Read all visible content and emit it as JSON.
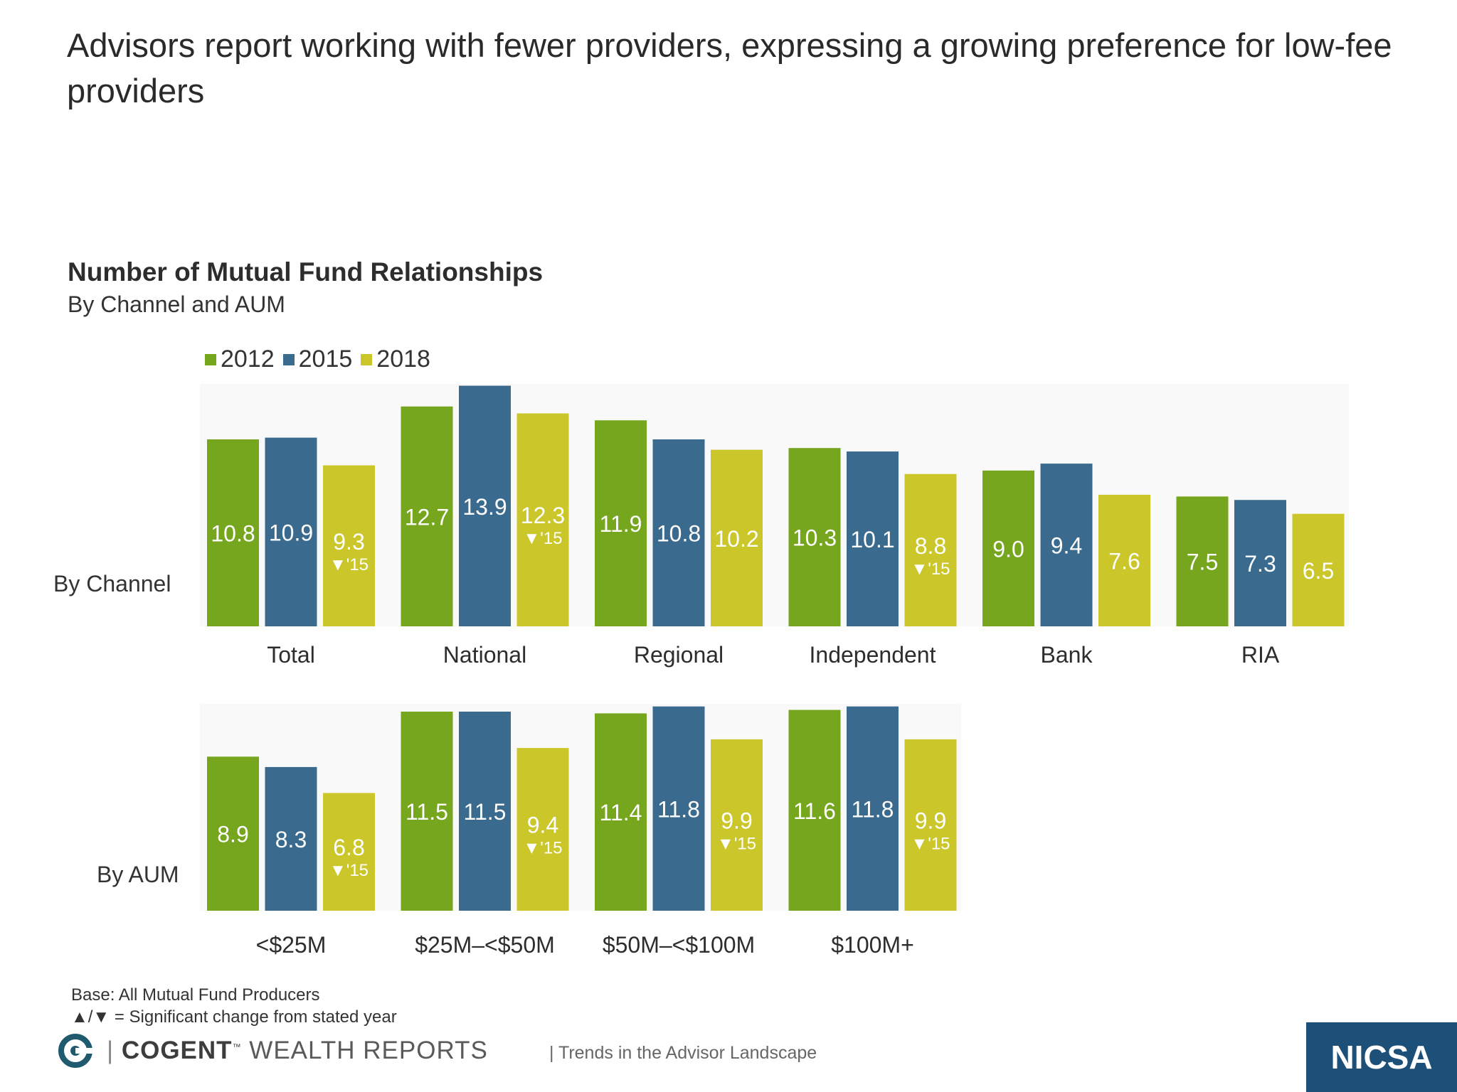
{
  "headline": "Advisors report working with fewer providers, expressing a growing preference for low-fee providers",
  "chart_data": {
    "type": "bar",
    "title": "Number of Mutual Fund Relationships",
    "subtitle": "By Channel and AUM",
    "legend": [
      "2012",
      "2015",
      "2018"
    ],
    "colors": {
      "2012": "#76a51e",
      "2015": "#3a6b8e",
      "2018": "#cbc62a"
    },
    "panels": [
      {
        "label": "By Channel",
        "categories": [
          "Total",
          "National",
          "Regional",
          "Independent",
          "Bank",
          "RIA"
        ],
        "series": [
          {
            "name": "2012",
            "values": [
              10.8,
              12.7,
              11.9,
              10.3,
              9.0,
              7.5
            ]
          },
          {
            "name": "2015",
            "values": [
              10.9,
              13.9,
              10.8,
              10.1,
              9.4,
              7.3
            ]
          },
          {
            "name": "2018",
            "values": [
              9.3,
              12.3,
              10.2,
              8.8,
              7.6,
              6.5
            ]
          }
        ],
        "labels": [
          [
            "10.8",
            "12.7",
            "11.9",
            "10.3",
            "9.0",
            "7.5"
          ],
          [
            "10.9",
            "13.9",
            "10.8",
            "10.1",
            "9.4",
            "7.3"
          ],
          [
            "9.3",
            "12.3",
            "10.2",
            "8.8",
            "7.6",
            "6.5"
          ]
        ],
        "sig_marks": [
          [
            "",
            "",
            "",
            "",
            "",
            ""
          ],
          [
            "",
            "",
            "",
            "",
            "",
            ""
          ],
          [
            "▼'15",
            "▼'15",
            "",
            "▼'15",
            "",
            ""
          ]
        ]
      },
      {
        "label": "By AUM",
        "categories": [
          "<$25M",
          "$25M–<$50M",
          "$50M–<$100M",
          "$100M+"
        ],
        "series": [
          {
            "name": "2012",
            "values": [
              8.9,
              11.5,
              11.4,
              11.6
            ]
          },
          {
            "name": "2015",
            "values": [
              8.3,
              11.5,
              11.8,
              11.8
            ]
          },
          {
            "name": "2018",
            "values": [
              6.8,
              9.4,
              9.9,
              9.9
            ]
          }
        ],
        "labels": [
          [
            "8.9",
            "11.5",
            "11.4",
            "11.6"
          ],
          [
            "8.3",
            "11.5",
            "11.8",
            "11.8"
          ],
          [
            "6.8",
            "9.4",
            "9.9",
            "9.9"
          ]
        ],
        "sig_marks": [
          [
            "",
            "",
            "",
            ""
          ],
          [
            "",
            "",
            "",
            ""
          ],
          [
            "▼'15",
            "▼'15",
            "▼'15",
            "▼'15"
          ]
        ]
      }
    ]
  },
  "footnotes": {
    "base": "Base: All Mutual Fund Producers",
    "significance": "▲/▼ = Significant change from stated year"
  },
  "footer": {
    "brand_bold": "COGENT",
    "brand_tm": "™",
    "brand_rest": " WEALTH REPORTS",
    "tagline": "| Trends in the Advisor Landscape",
    "nicsa": "NICSA"
  }
}
